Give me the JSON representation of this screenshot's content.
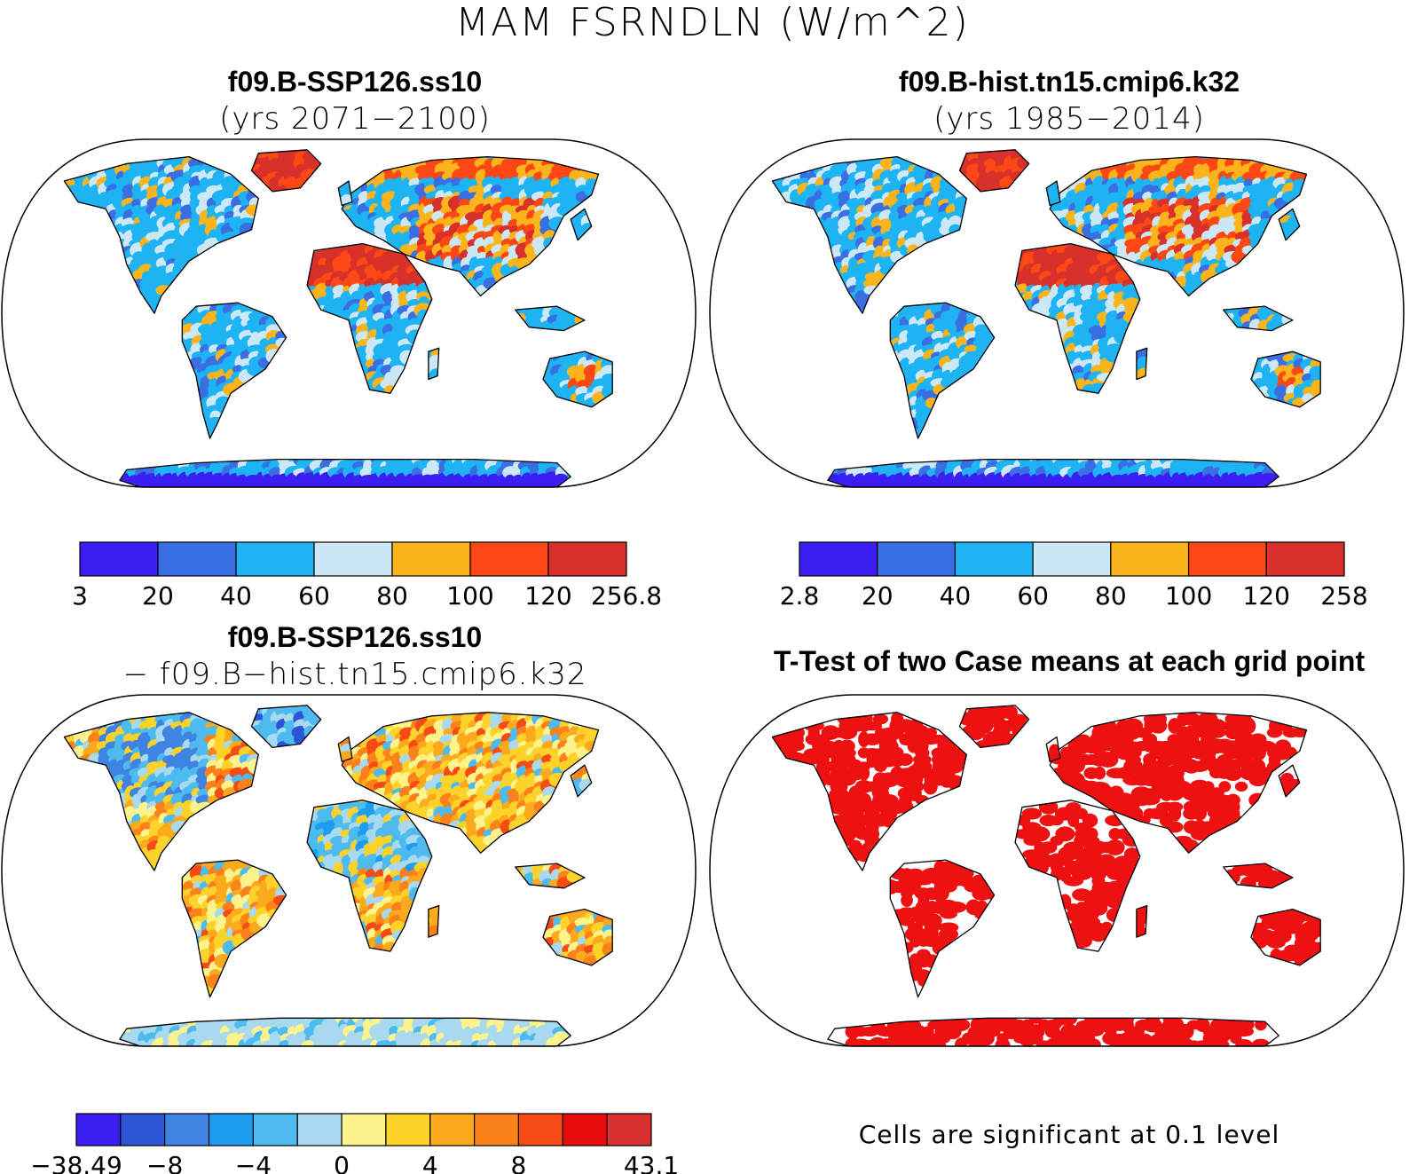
{
  "figure": {
    "title": "MAM FSRNDLN (W/m^2)"
  },
  "panels": [
    {
      "id": "future",
      "title_line1": "f09.B-SSP126.ss10",
      "title_line2": "(yrs 2071−2100)",
      "colorbar": {
        "colors": [
          "#3b1ff2",
          "#3a6ee3",
          "#1eb3f3",
          "#cce8f7",
          "#fbb41c",
          "#fb4814",
          "#d8302b"
        ],
        "labels": [
          "3",
          "20",
          "40",
          "60",
          "80",
          "100",
          "120",
          "256.8"
        ]
      }
    },
    {
      "id": "historical",
      "title_line1": "f09.B-hist.tn15.cmip6.k32",
      "title_line2": "(yrs 1985−2014)",
      "colorbar": {
        "colors": [
          "#3b1ff2",
          "#3a6ee3",
          "#1eb3f3",
          "#cce8f7",
          "#fbb41c",
          "#fb4814",
          "#d8302b"
        ],
        "labels": [
          "2.8",
          "20",
          "40",
          "60",
          "80",
          "100",
          "120",
          "258"
        ]
      }
    },
    {
      "id": "difference",
      "title_line1": "f09.B-SSP126.ss10",
      "title_line2": "− f09.B−hist.tn15.cmip6.k32",
      "colorbar": {
        "colors": [
          "#3b1ff2",
          "#2b54d6",
          "#3f84e2",
          "#1e9cf0",
          "#4dbbef",
          "#a8d9ee",
          "#fdf38c",
          "#fdd22a",
          "#fcaa1d",
          "#fb821a",
          "#f64b14",
          "#e60d0a",
          "#d83030"
        ],
        "labels": [
          "−38.49",
          "−8",
          "−4",
          "0",
          "4",
          "8",
          "43.1"
        ]
      }
    },
    {
      "id": "ttest",
      "title_line1": "T-Test of two Case means at each grid point",
      "footnote": "Cells are significant at 0.1 level",
      "significant_color": "#ee1111"
    }
  ]
}
